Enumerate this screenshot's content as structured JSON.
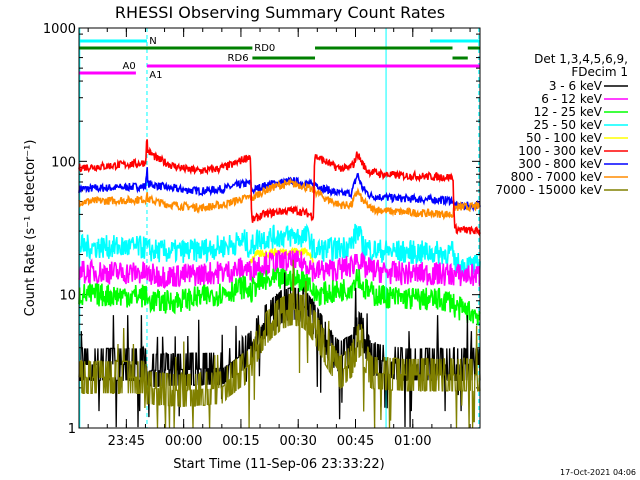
{
  "chart_data": {
    "type": "line",
    "title": "RHESSI Observing Summary Count Rates",
    "xlabel": "Start Time (11-Sep-06 23:33:22)",
    "ylabel": "Count Rate (s⁻¹ detector⁻¹)",
    "y_scale": "log",
    "ylim": [
      1,
      1000
    ],
    "xlim_minutes": [
      -27.4,
      77.6
    ],
    "y_ticks": [
      {
        "v": 1,
        "label": "1"
      },
      {
        "v": 10,
        "label": "10"
      },
      {
        "v": 100,
        "label": "100"
      },
      {
        "v": 1000,
        "label": "1000"
      }
    ],
    "x_ticks": [
      {
        "t": -15,
        "label": "23:45"
      },
      {
        "t": 0,
        "label": "00:00"
      },
      {
        "t": 15,
        "label": "00:15"
      },
      {
        "t": 30,
        "label": "00:30"
      },
      {
        "t": 45,
        "label": "00:45"
      },
      {
        "t": 60,
        "label": "01:00"
      }
    ],
    "legend_header": [
      "Det 1,3,4,5,6,9,",
      "FDecim 1"
    ],
    "legend_position": "right",
    "timestamp": "17-Oct-2021 04:06",
    "series": [
      {
        "name": "3 - 6 keV",
        "color": "#000000",
        "kind": "low",
        "points": [
          [
            -27.4,
            3.0
          ],
          [
            -10.0,
            3.0
          ],
          [
            -9.2,
            2.7
          ],
          [
            10.0,
            2.8
          ],
          [
            12.0,
            3.0
          ],
          [
            17.5,
            4.0
          ],
          [
            19.0,
            5.0
          ],
          [
            21.0,
            6.2
          ],
          [
            23.5,
            7.2
          ],
          [
            25.5,
            8.0
          ],
          [
            27.0,
            8.4
          ],
          [
            28.5,
            8.6
          ],
          [
            30.0,
            8.5
          ],
          [
            31.5,
            8.2
          ],
          [
            33.0,
            7.3
          ],
          [
            35.0,
            6.0
          ],
          [
            37.0,
            4.8
          ],
          [
            39.0,
            3.8
          ],
          [
            41.0,
            3.4
          ],
          [
            44.0,
            3.8
          ],
          [
            45.5,
            5.3
          ],
          [
            46.5,
            5.6
          ],
          [
            47.5,
            4.6
          ],
          [
            49.0,
            3.3
          ],
          [
            58.0,
            3.0
          ],
          [
            77.6,
            3.0
          ]
        ]
      },
      {
        "name": "6 - 12 keV",
        "color": "#ff00ff",
        "kind": "noisy",
        "points": [
          [
            -27.4,
            14.8
          ],
          [
            -10.0,
            14.5
          ],
          [
            -9.4,
            14.0
          ],
          [
            -4.0,
            13.8
          ],
          [
            4.0,
            14.2
          ],
          [
            12.0,
            15.0
          ],
          [
            16.0,
            15.8
          ],
          [
            17.5,
            14.8
          ],
          [
            19.0,
            16.8
          ],
          [
            25.0,
            17.6
          ],
          [
            29.0,
            17.5
          ],
          [
            33.0,
            17.0
          ],
          [
            34.0,
            15.0
          ],
          [
            40.0,
            15.4
          ],
          [
            44.0,
            16.3
          ],
          [
            45.5,
            19.2
          ],
          [
            47.0,
            16.0
          ],
          [
            50.0,
            15.2
          ],
          [
            55.0,
            14.5
          ],
          [
            70.5,
            14.2
          ],
          [
            71.0,
            14.0
          ],
          [
            77.6,
            14.0
          ]
        ]
      },
      {
        "name": "12 - 25 keV",
        "color": "#00ff00",
        "kind": "noisy",
        "points": [
          [
            -27.4,
            10.0
          ],
          [
            -10.0,
            9.8
          ],
          [
            -9.4,
            9.0
          ],
          [
            -4.0,
            8.8
          ],
          [
            4.0,
            9.5
          ],
          [
            12.0,
            10.6
          ],
          [
            16.0,
            11.5
          ],
          [
            17.5,
            10.2
          ],
          [
            19.0,
            12.0
          ],
          [
            25.0,
            13.0
          ],
          [
            29.0,
            13.0
          ],
          [
            33.0,
            12.5
          ],
          [
            34.0,
            10.0
          ],
          [
            40.0,
            10.5
          ],
          [
            44.0,
            11.5
          ],
          [
            45.5,
            14.5
          ],
          [
            47.0,
            11.2
          ],
          [
            50.0,
            10.0
          ],
          [
            55.0,
            9.5
          ],
          [
            70.5,
            9.0
          ],
          [
            71.0,
            8.0
          ],
          [
            77.6,
            7.0
          ]
        ]
      },
      {
        "name": "25 - 50 keV",
        "color": "#00ffff",
        "kind": "noisy",
        "points": [
          [
            -27.4,
            23.0
          ],
          [
            -10.0,
            22.5
          ],
          [
            -9.4,
            21.5
          ],
          [
            -4.0,
            21.0
          ],
          [
            4.0,
            21.5
          ],
          [
            12.0,
            23.5
          ],
          [
            16.0,
            25.5
          ],
          [
            17.5,
            21.8
          ],
          [
            19.0,
            26.0
          ],
          [
            25.0,
            27.5
          ],
          [
            29.0,
            27.5
          ],
          [
            33.0,
            27.0
          ],
          [
            34.0,
            21.5
          ],
          [
            40.0,
            22.0
          ],
          [
            44.0,
            24.0
          ],
          [
            45.5,
            31.0
          ],
          [
            47.0,
            23.0
          ],
          [
            50.0,
            21.5
          ],
          [
            55.0,
            21.0
          ],
          [
            70.5,
            20.5
          ],
          [
            71.0,
            17.0
          ],
          [
            77.6,
            16.0
          ]
        ]
      },
      {
        "name": "50 - 100 keV",
        "color": "#ffff00",
        "kind": "smooth",
        "points": [
          [
            17.5,
            18.0
          ],
          [
            19.0,
            20.0
          ],
          [
            25.0,
            21.0
          ],
          [
            29.0,
            21.2
          ],
          [
            33.0,
            21.0
          ],
          [
            34.0,
            17.0
          ]
        ]
      },
      {
        "name": "100 - 300 keV",
        "color": "#ff0000",
        "kind": "smooth",
        "points": [
          [
            -27.4,
            90.0
          ],
          [
            -20.0,
            92.0
          ],
          [
            -15.0,
            95.0
          ],
          [
            -11.0,
            97.0
          ],
          [
            -10.0,
            98.0
          ],
          [
            -9.6,
            150.0
          ],
          [
            -9.4,
            120.0
          ],
          [
            -7.0,
            105.0
          ],
          [
            -3.0,
            93.0
          ],
          [
            1.0,
            87.0
          ],
          [
            5.0,
            85.0
          ],
          [
            9.0,
            88.0
          ],
          [
            13.0,
            95.0
          ],
          [
            16.0,
            105.0
          ],
          [
            17.5,
            110.0
          ],
          [
            17.8,
            36.0
          ],
          [
            21.0,
            40.0
          ],
          [
            25.0,
            42.0
          ],
          [
            29.0,
            43.0
          ],
          [
            32.0,
            41.0
          ],
          [
            34.0,
            39.0
          ],
          [
            34.3,
            110.0
          ],
          [
            37.0,
            100.0
          ],
          [
            40.0,
            90.0
          ],
          [
            43.0,
            88.0
          ],
          [
            44.5,
            95.0
          ],
          [
            45.5,
            115.0
          ],
          [
            46.5,
            100.0
          ],
          [
            48.0,
            85.0
          ],
          [
            52.0,
            80.0
          ],
          [
            58.0,
            78.0
          ],
          [
            64.0,
            77.0
          ],
          [
            70.5,
            76.0
          ],
          [
            71.0,
            31.0
          ],
          [
            76.0,
            30.0
          ],
          [
            77.6,
            30.0
          ]
        ]
      },
      {
        "name": "300 - 800 keV",
        "color": "#0000ff",
        "kind": "smooth",
        "points": [
          [
            -27.4,
            62.0
          ],
          [
            -15.0,
            64.0
          ],
          [
            -10.0,
            65.0
          ],
          [
            -9.6,
            92.0
          ],
          [
            -9.4,
            68.0
          ],
          [
            -5.0,
            64.0
          ],
          [
            0.0,
            61.0
          ],
          [
            5.0,
            60.0
          ],
          [
            10.0,
            62.0
          ],
          [
            14.0,
            66.0
          ],
          [
            17.5,
            69.0
          ],
          [
            17.8,
            60.0
          ],
          [
            20.0,
            64.0
          ],
          [
            24.0,
            69.0
          ],
          [
            28.0,
            71.0
          ],
          [
            31.0,
            69.0
          ],
          [
            34.0,
            66.0
          ],
          [
            34.3,
            68.0
          ],
          [
            37.0,
            62.0
          ],
          [
            41.0,
            57.0
          ],
          [
            44.0,
            58.0
          ],
          [
            45.5,
            80.0
          ],
          [
            46.8,
            63.0
          ],
          [
            49.0,
            55.0
          ],
          [
            55.0,
            53.0
          ],
          [
            62.0,
            52.0
          ],
          [
            70.5,
            51.0
          ],
          [
            71.0,
            46.0
          ],
          [
            77.6,
            47.0
          ]
        ]
      },
      {
        "name": "800 - 7000 keV",
        "color": "#ff8c00",
        "kind": "smooth",
        "points": [
          [
            -27.4,
            50.0
          ],
          [
            -15.0,
            51.0
          ],
          [
            -10.0,
            52.0
          ],
          [
            -9.6,
            56.0
          ],
          [
            -9.4,
            52.0
          ],
          [
            -5.0,
            48.0
          ],
          [
            0.0,
            46.0
          ],
          [
            5.0,
            45.0
          ],
          [
            10.0,
            47.0
          ],
          [
            14.0,
            51.0
          ],
          [
            17.5,
            54.0
          ],
          [
            17.8,
            52.0
          ],
          [
            20.0,
            58.0
          ],
          [
            24.0,
            65.0
          ],
          [
            28.0,
            68.0
          ],
          [
            31.0,
            66.0
          ],
          [
            34.0,
            60.0
          ],
          [
            34.3,
            60.0
          ],
          [
            37.0,
            53.0
          ],
          [
            41.0,
            47.0
          ],
          [
            44.0,
            47.0
          ],
          [
            45.5,
            60.0
          ],
          [
            46.8,
            51.0
          ],
          [
            49.0,
            44.0
          ],
          [
            55.0,
            42.0
          ],
          [
            62.0,
            41.0
          ],
          [
            70.5,
            40.0
          ],
          [
            71.0,
            45.0
          ],
          [
            77.6,
            46.0
          ]
        ]
      },
      {
        "name": "7000 - 15000 keV",
        "color": "#808000",
        "kind": "low",
        "points": [
          [
            -27.4,
            2.4
          ],
          [
            -10.0,
            2.4
          ],
          [
            -9.6,
            2.0
          ],
          [
            0.0,
            1.9
          ],
          [
            10.0,
            2.0
          ],
          [
            12.0,
            2.3
          ],
          [
            17.5,
            3.0
          ],
          [
            19.0,
            4.0
          ],
          [
            21.0,
            5.3
          ],
          [
            23.5,
            6.4
          ],
          [
            25.5,
            7.2
          ],
          [
            27.0,
            7.6
          ],
          [
            28.5,
            7.8
          ],
          [
            30.0,
            7.7
          ],
          [
            31.5,
            7.4
          ],
          [
            33.0,
            6.6
          ],
          [
            35.0,
            5.2
          ],
          [
            37.0,
            4.0
          ],
          [
            39.0,
            3.2
          ],
          [
            41.0,
            2.6
          ],
          [
            44.0,
            3.2
          ],
          [
            45.5,
            4.4
          ],
          [
            46.5,
            4.6
          ],
          [
            47.5,
            3.6
          ],
          [
            49.0,
            2.6
          ],
          [
            58.0,
            2.5
          ],
          [
            77.6,
            2.5
          ]
        ]
      }
    ],
    "state_bars": {
      "night_label": "N",
      "rd_labels": [
        "RD0",
        "RD6"
      ],
      "attenuator_labels": [
        "A0",
        "A1"
      ],
      "night": [
        [
          -27.4,
          -9.6
        ],
        [
          64.5,
          77.6
        ]
      ],
      "rd0": [
        [
          -27.4,
          18.0
        ],
        [
          34.4,
          70.4
        ],
        [
          74.4,
          77.6
        ]
      ],
      "rd6": [
        [
          18.0,
          34.4
        ],
        [
          70.4,
          74.4
        ]
      ],
      "a0": [
        [
          -27.4,
          -12.5
        ]
      ],
      "a1": [
        [
          -9.6,
          77.6
        ]
      ],
      "color_night": "#00ffff",
      "color_rd": "#008000",
      "color_att": "#ff00ff"
    },
    "vlines": [
      {
        "t": -27.2,
        "style": "solid",
        "color": "#00ffff"
      },
      {
        "t": -9.6,
        "style": "dashed",
        "color": "#00ffff"
      },
      {
        "t": 53.0,
        "style": "solid",
        "color": "#00ffff"
      },
      {
        "t": 77.3,
        "style": "dashed",
        "color": "#00ffff"
      }
    ]
  }
}
